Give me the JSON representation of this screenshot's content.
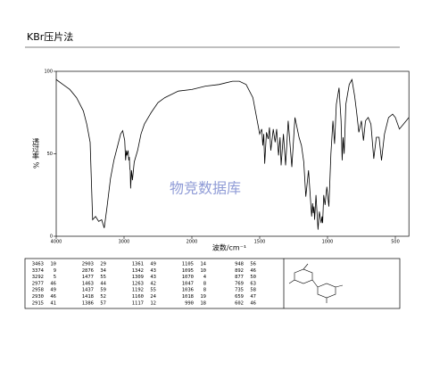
{
  "chart_data": {
    "type": "line",
    "title": "KBr压片法",
    "xlabel": "波数/cm⁻¹",
    "ylabel": "透过率 %",
    "watermark": "物竞数据库",
    "x": [
      4000,
      3900,
      3800,
      3700,
      3600,
      3550,
      3500,
      3463,
      3420,
      3374,
      3330,
      3292,
      3250,
      3200,
      3150,
      3100,
      3050,
      3020,
      2990,
      2977,
      2965,
      2958,
      2940,
      2930,
      2922,
      2915,
      2909,
      2903,
      2890,
      2876,
      2850,
      2800,
      2750,
      2700,
      2600,
      2500,
      2400,
      2300,
      2200,
      2000,
      1900,
      1800,
      1700,
      1650,
      1600,
      1550,
      1500,
      1485,
      1477,
      1470,
      1463,
      1450,
      1437,
      1428,
      1418,
      1400,
      1386,
      1375,
      1361,
      1350,
      1342,
      1325,
      1309,
      1290,
      1263,
      1240,
      1210,
      1192,
      1175,
      1160,
      1140,
      1117,
      1110,
      1105,
      1100,
      1095,
      1085,
      1070,
      1060,
      1047,
      1040,
      1036,
      1028,
      1018,
      1005,
      990,
      975,
      960,
      948,
      935,
      915,
      900,
      892,
      885,
      877,
      865,
      840,
      820,
      800,
      785,
      769,
      750,
      735,
      720,
      700,
      680,
      659,
      640,
      620,
      602,
      580,
      550,
      520,
      500,
      470,
      440,
      400
    ],
    "values": [
      95,
      92,
      89,
      84,
      76,
      68,
      57,
      10,
      12,
      9,
      10,
      5,
      18,
      35,
      46,
      54,
      62,
      64,
      58,
      46,
      52,
      49,
      52,
      46,
      48,
      41,
      40,
      29,
      40,
      34,
      45,
      52,
      62,
      68,
      75,
      81,
      84,
      86,
      88,
      89,
      91,
      92,
      94,
      94,
      92,
      84,
      62,
      65,
      55,
      62,
      44,
      63,
      59,
      66,
      52,
      65,
      57,
      65,
      49,
      60,
      43,
      62,
      43,
      70,
      42,
      72,
      60,
      55,
      45,
      24,
      40,
      12,
      20,
      14,
      18,
      10,
      25,
      4,
      15,
      8,
      12,
      8,
      25,
      19,
      30,
      18,
      50,
      70,
      56,
      80,
      90,
      70,
      46,
      60,
      50,
      80,
      92,
      95,
      85,
      75,
      63,
      70,
      58,
      70,
      72,
      68,
      47,
      60,
      60,
      46,
      62,
      72,
      74,
      72,
      65,
      68,
      72
    ],
    "color": "#000000",
    "xlim": [
      4000,
      400
    ],
    "ylim": [
      0,
      100
    ],
    "xticks": [
      4000,
      3000,
      2000,
      1500,
      1000,
      500
    ],
    "yticks": [
      0,
      50,
      100
    ]
  },
  "peak_table": {
    "rows": [
      [
        3463,
        10
      ],
      [
        3374,
        9
      ],
      [
        3292,
        5
      ],
      [
        2977,
        46
      ],
      [
        2958,
        49
      ],
      [
        2930,
        46
      ],
      [
        2915,
        41
      ],
      [
        2903,
        29
      ],
      [
        2876,
        34
      ],
      [
        1477,
        55
      ],
      [
        1463,
        44
      ],
      [
        1437,
        59
      ],
      [
        1418,
        52
      ],
      [
        1386,
        57
      ],
      [
        1361,
        49
      ],
      [
        1342,
        43
      ],
      [
        1309,
        43
      ],
      [
        1263,
        42
      ],
      [
        1192,
        55
      ],
      [
        1160,
        24
      ],
      [
        1117,
        12
      ],
      [
        1105,
        14
      ],
      [
        1095,
        10
      ],
      [
        1070,
        4
      ],
      [
        1047,
        8
      ],
      [
        1036,
        8
      ],
      [
        1018,
        19
      ],
      [
        990,
        18
      ],
      [
        948,
        56
      ],
      [
        892,
        46
      ],
      [
        877,
        50
      ],
      [
        769,
        63
      ],
      [
        735,
        58
      ],
      [
        659,
        47
      ],
      [
        602,
        46
      ]
    ]
  }
}
